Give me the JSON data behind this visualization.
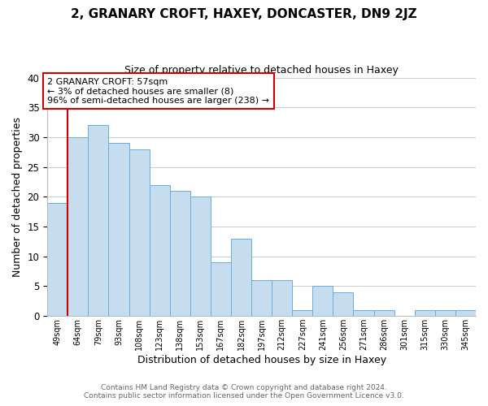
{
  "title": "2, GRANARY CROFT, HAXEY, DONCASTER, DN9 2JZ",
  "subtitle": "Size of property relative to detached houses in Haxey",
  "xlabel": "Distribution of detached houses by size in Haxey",
  "ylabel": "Number of detached properties",
  "bar_labels": [
    "49sqm",
    "64sqm",
    "79sqm",
    "93sqm",
    "108sqm",
    "123sqm",
    "138sqm",
    "153sqm",
    "167sqm",
    "182sqm",
    "197sqm",
    "212sqm",
    "227sqm",
    "241sqm",
    "256sqm",
    "271sqm",
    "286sqm",
    "301sqm",
    "315sqm",
    "330sqm",
    "345sqm"
  ],
  "bar_values": [
    19,
    30,
    32,
    29,
    28,
    22,
    21,
    20,
    9,
    13,
    6,
    6,
    1,
    5,
    4,
    1,
    1,
    0,
    1,
    1,
    1
  ],
  "bar_color": "#c5ddef",
  "bar_edge_color": "#6aaed6",
  "ylim": [
    0,
    40
  ],
  "yticks": [
    0,
    5,
    10,
    15,
    20,
    25,
    30,
    35,
    40
  ],
  "annotation_title": "2 GRANARY CROFT: 57sqm",
  "annotation_line1": "← 3% of detached houses are smaller (8)",
  "annotation_line2": "96% of semi-detached houses are larger (238) →",
  "annotation_box_color": "#ffffff",
  "annotation_box_edge": "#cc0000",
  "vline_color": "#cc0000",
  "footer1": "Contains HM Land Registry data © Crown copyright and database right 2024.",
  "footer2": "Contains public sector information licensed under the Open Government Licence v3.0.",
  "background_color": "#ffffff",
  "grid_color": "#cccccc"
}
